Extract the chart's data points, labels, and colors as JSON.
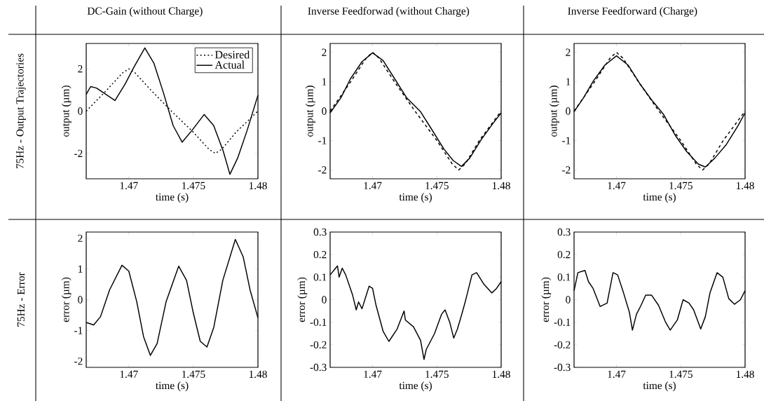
{
  "chart_data": [
    {
      "type": "line",
      "title": "DC-Gain (without Charge)",
      "annotations": [
        "75Hz - Output Trajectories"
      ],
      "xlabel": "time (s)",
      "ylabel": "output (µm)",
      "xlim": [
        1.4667,
        1.48
      ],
      "ylim": [
        -3.2,
        3.2
      ],
      "xticks": [
        1.47,
        1.475,
        1.48
      ],
      "yticks": [
        -2,
        0,
        2
      ],
      "legend": "top right",
      "series": [
        {
          "name": "Desired",
          "color": "#000000",
          "line_style": "dotted",
          "x": [
            1.4667,
            1.4683,
            1.4695,
            1.47,
            1.4705,
            1.4717,
            1.4733,
            1.475,
            1.4762,
            1.4767,
            1.4772,
            1.4783,
            1.48
          ],
          "values": [
            0,
            1,
            1.8,
            2,
            1.8,
            1,
            0,
            -1,
            -1.8,
            -2,
            -1.8,
            -1,
            0
          ]
        },
        {
          "name": "Actual",
          "color": "#000000",
          "line_style": "solid",
          "x": [
            1.4667,
            1.46704,
            1.4675,
            1.46893,
            1.46972,
            1.47037,
            1.47124,
            1.47194,
            1.47269,
            1.47343,
            1.47413,
            1.47491,
            1.47583,
            1.47657,
            1.47731,
            1.47783,
            1.47843,
            1.47917,
            1.48
          ],
          "values": [
            0.79,
            1.16,
            1.09,
            0.5,
            1.29,
            2.05,
            2.99,
            2.27,
            0.85,
            -0.68,
            -1.47,
            -0.9,
            -0.16,
            -0.68,
            -1.89,
            -2.99,
            -2.22,
            -0.9,
            0.75
          ]
        }
      ]
    },
    {
      "type": "line",
      "title": "Inverse Feedforwad (without Charge)",
      "xlabel": "time (s)",
      "ylabel": "output (µm)",
      "xlim": [
        1.4667,
        1.48
      ],
      "ylim": [
        -2.3,
        2.3
      ],
      "xticks": [
        1.47,
        1.475,
        1.48
      ],
      "yticks": [
        -2,
        -1,
        0,
        1,
        2
      ],
      "series": [
        {
          "color": "#000000",
          "line_style": "dashed",
          "x": [
            1.4667,
            1.4683,
            1.4695,
            1.47,
            1.4705,
            1.4717,
            1.4733,
            1.475,
            1.4762,
            1.4767,
            1.4772,
            1.4783,
            1.48
          ],
          "values": [
            0,
            1,
            1.8,
            2,
            1.8,
            1,
            0,
            -1,
            -1.8,
            -2,
            -1.8,
            -1,
            0
          ]
        },
        {
          "color": "#000000",
          "line_style": "solid",
          "x": [
            1.4667,
            1.46755,
            1.46827,
            1.46918,
            1.47,
            1.47082,
            1.47173,
            1.47264,
            1.47373,
            1.47464,
            1.47555,
            1.47627,
            1.47691,
            1.47755,
            1.47845,
            1.47936,
            1.48
          ],
          "values": [
            -0.06,
            0.46,
            1.09,
            1.68,
            1.98,
            1.72,
            1.09,
            0.46,
            -0.02,
            -0.65,
            -1.29,
            -1.68,
            -1.88,
            -1.6,
            -0.97,
            -0.42,
            -0.06
          ]
        }
      ]
    },
    {
      "type": "line",
      "title": "Inverse Feedforward (Charge)",
      "xlabel": "time (s)",
      "ylabel": "output (µm)",
      "xlim": [
        1.4667,
        1.48
      ],
      "ylim": [
        -2.3,
        2.3
      ],
      "xticks": [
        1.47,
        1.475,
        1.48
      ],
      "yticks": [
        -2,
        -1,
        0,
        1,
        2
      ],
      "series": [
        {
          "color": "#000000",
          "line_style": "dashed",
          "x": [
            1.4667,
            1.4683,
            1.4695,
            1.47,
            1.4705,
            1.4717,
            1.4733,
            1.475,
            1.4762,
            1.4767,
            1.4772,
            1.4783,
            1.48
          ],
          "values": [
            0,
            1,
            1.8,
            2,
            1.8,
            1,
            0,
            -1,
            -1.8,
            -2,
            -1.8,
            -1,
            0
          ]
        },
        {
          "color": "#000000",
          "line_style": "solid",
          "x": [
            1.4667,
            1.46745,
            1.46818,
            1.46909,
            1.47,
            1.47091,
            1.47182,
            1.47273,
            1.47364,
            1.47455,
            1.47545,
            1.47636,
            1.47691,
            1.47764,
            1.47855,
            1.47945,
            1.48
          ],
          "values": [
            -0.02,
            0.46,
            1.01,
            1.56,
            1.88,
            1.56,
            0.93,
            0.38,
            -0.1,
            -0.81,
            -1.37,
            -1.8,
            -1.9,
            -1.6,
            -1.13,
            -0.5,
            -0.06
          ]
        }
      ]
    },
    {
      "type": "line",
      "annotations": [
        "75Hz - Error"
      ],
      "xlabel": "time (s)",
      "ylabel": "error  (µm)",
      "xlim": [
        1.4667,
        1.48
      ],
      "ylim": [
        -2.2,
        2.2
      ],
      "xticks": [
        1.47,
        1.475,
        1.48
      ],
      "yticks": [
        -2,
        -1,
        0,
        1,
        2
      ],
      "series": [
        {
          "color": "#000000",
          "line_style": "solid",
          "x": [
            1.4667,
            1.46728,
            1.46781,
            1.46851,
            1.46947,
            1.47,
            1.47061,
            1.47114,
            1.47167,
            1.47219,
            1.47289,
            1.47386,
            1.47447,
            1.475,
            1.47553,
            1.47605,
            1.47658,
            1.47728,
            1.47825,
            1.47886,
            1.47939,
            1.48
          ],
          "values": [
            -0.74,
            -0.82,
            -0.55,
            0.32,
            1.12,
            0.93,
            -0.06,
            -1.2,
            -1.81,
            -1.43,
            -0.06,
            1.09,
            0.63,
            -0.44,
            -1.35,
            -1.54,
            -0.9,
            0.63,
            1.96,
            1.39,
            0.32,
            -0.59
          ]
        }
      ]
    },
    {
      "type": "line",
      "xlabel": "time (s)",
      "ylabel": "error  (µm)",
      "xlim": [
        1.4667,
        1.48
      ],
      "ylim": [
        -0.3,
        0.3
      ],
      "xticks": [
        1.47,
        1.475,
        1.48
      ],
      "yticks": [
        -0.3,
        -0.2,
        -0.1,
        0,
        0.1,
        0.2,
        0.3
      ],
      "series": [
        {
          "color": "#000000",
          "line_style": "solid",
          "x": [
            1.4667,
            1.46727,
            1.4674,
            1.46764,
            1.46791,
            1.46845,
            1.46873,
            1.46891,
            1.46918,
            1.46973,
            1.47,
            1.47027,
            1.47082,
            1.47127,
            1.47191,
            1.47245,
            1.47255,
            1.47318,
            1.47373,
            1.474,
            1.47418,
            1.47482,
            1.47536,
            1.47564,
            1.476,
            1.47631,
            1.4766,
            1.47691,
            1.47718,
            1.47773,
            1.47809,
            1.47864,
            1.47927,
            1.47964,
            1.48
          ],
          "values": [
            0.11,
            0.15,
            0.1,
            0.14,
            0.11,
            0.02,
            -0.045,
            -0.01,
            -0.04,
            0.06,
            0.05,
            -0.025,
            -0.14,
            -0.185,
            -0.13,
            -0.05,
            -0.09,
            -0.12,
            -0.18,
            -0.265,
            -0.22,
            -0.15,
            -0.065,
            -0.045,
            -0.1,
            -0.17,
            -0.13,
            -0.07,
            -0.015,
            0.11,
            0.12,
            0.07,
            0.03,
            0.05,
            0.08
          ]
        }
      ]
    },
    {
      "type": "line",
      "xlabel": "time (s)",
      "ylabel": "error  (µm)",
      "xlim": [
        1.4667,
        1.48
      ],
      "ylim": [
        -0.3,
        0.3
      ],
      "xticks": [
        1.47,
        1.475,
        1.48
      ],
      "yticks": [
        -0.3,
        -0.2,
        -0.1,
        0,
        0.1,
        0.2,
        0.3
      ],
      "series": [
        {
          "color": "#000000",
          "line_style": "solid",
          "x": [
            1.4667,
            1.467,
            1.46755,
            1.46782,
            1.46818,
            1.46873,
            1.46927,
            1.46973,
            1.47009,
            1.47055,
            1.471,
            1.47124,
            1.47155,
            1.47191,
            1.47227,
            1.47273,
            1.47327,
            1.47382,
            1.47418,
            1.47473,
            1.47518,
            1.47564,
            1.476,
            1.47655,
            1.47691,
            1.47727,
            1.47782,
            1.47827,
            1.47873,
            1.47918,
            1.47964,
            1.48
          ],
          "values": [
            0.04,
            0.12,
            0.13,
            0.08,
            0.05,
            -0.03,
            -0.015,
            0.12,
            0.11,
            0.03,
            -0.055,
            -0.135,
            -0.065,
            -0.025,
            0.02,
            0.02,
            -0.025,
            -0.1,
            -0.135,
            -0.09,
            0.0,
            -0.015,
            -0.045,
            -0.13,
            -0.075,
            0.03,
            0.12,
            0.1,
            0.005,
            -0.02,
            0.0,
            0.04
          ]
        }
      ]
    }
  ]
}
